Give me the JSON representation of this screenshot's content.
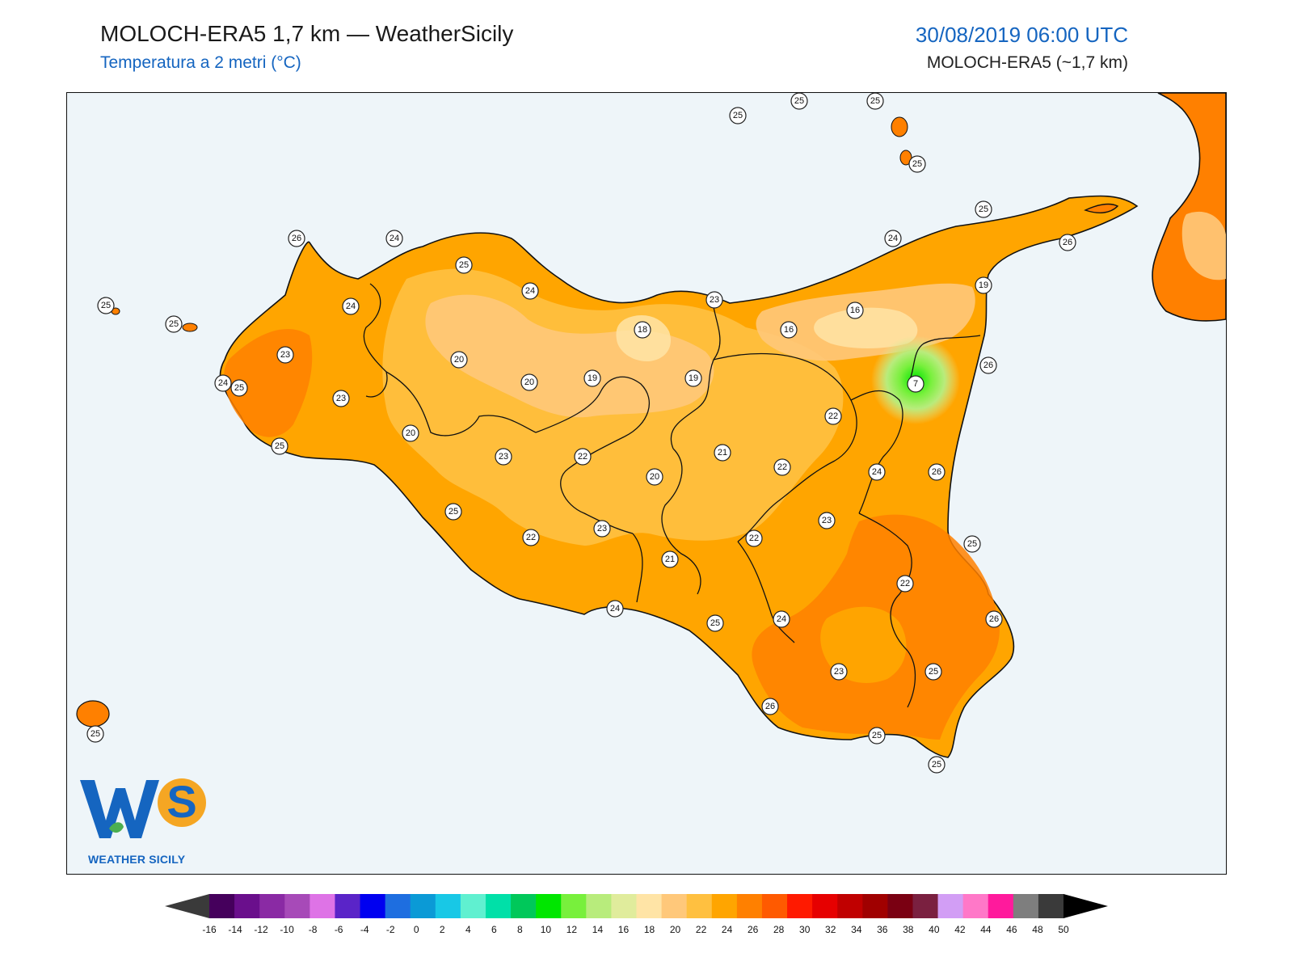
{
  "header": {
    "title": "MOLOCH-ERA5 1,7 km — WeatherSicily",
    "subtitle": "Temperatura a 2 metri (°C)",
    "datetime": "30/08/2019 06:00 UTC",
    "model": "MOLOCH-ERA5 (~1,7 km)"
  },
  "logo": {
    "monogram": "WS",
    "caption": "WEATHER SICILY",
    "brand_color": "#1565c0",
    "accent_color": "#f5a623"
  },
  "map": {
    "variable": "2 m temperature",
    "unit": "°C",
    "stations": [
      {
        "label": "25"
      },
      {
        "label": "25"
      },
      {
        "label": "25"
      },
      {
        "label": "25"
      },
      {
        "label": "25"
      },
      {
        "label": "24"
      },
      {
        "label": "26"
      },
      {
        "label": "19"
      },
      {
        "label": "16"
      },
      {
        "label": "16"
      },
      {
        "label": "7"
      },
      {
        "label": "26"
      },
      {
        "label": "22"
      },
      {
        "label": "24"
      },
      {
        "label": "26"
      },
      {
        "label": "25"
      },
      {
        "label": "22"
      },
      {
        "label": "26"
      },
      {
        "label": "25"
      },
      {
        "label": "23"
      },
      {
        "label": "25"
      },
      {
        "label": "25"
      },
      {
        "label": "26"
      },
      {
        "label": "24"
      },
      {
        "label": "23"
      },
      {
        "label": "22"
      },
      {
        "label": "22"
      },
      {
        "label": "21"
      },
      {
        "label": "25"
      },
      {
        "label": "24"
      },
      {
        "label": "21"
      },
      {
        "label": "20"
      },
      {
        "label": "22"
      },
      {
        "label": "23"
      },
      {
        "label": "22"
      },
      {
        "label": "25"
      },
      {
        "label": "23"
      },
      {
        "label": "20"
      },
      {
        "label": "23"
      },
      {
        "label": "25"
      },
      {
        "label": "24"
      },
      {
        "label": "23"
      },
      {
        "label": "24"
      },
      {
        "label": "25"
      },
      {
        "label": "26"
      },
      {
        "label": "25"
      },
      {
        "label": "25"
      },
      {
        "label": "24"
      },
      {
        "label": "25"
      },
      {
        "label": "24"
      },
      {
        "label": "20"
      },
      {
        "label": "20"
      },
      {
        "label": "19"
      },
      {
        "label": "18"
      },
      {
        "label": "19"
      },
      {
        "label": "23"
      },
      {
        "label": "25"
      }
    ]
  },
  "colorbar": {
    "unit": "°C",
    "ticks": [
      "-16",
      "-14",
      "-12",
      "-10",
      "-8",
      "-6",
      "-4",
      "-2",
      "0",
      "2",
      "4",
      "6",
      "8",
      "10",
      "12",
      "14",
      "16",
      "18",
      "20",
      "22",
      "24",
      "26",
      "28",
      "30",
      "32",
      "34",
      "36",
      "38",
      "40",
      "42",
      "44",
      "46",
      "48",
      "50"
    ],
    "colors": [
      "#45005c",
      "#6a0f8c",
      "#8a2aa4",
      "#a74ab8",
      "#de73e6",
      "#5a24c8",
      "#0000f0",
      "#1e6ee0",
      "#0b9ad6",
      "#18c8e6",
      "#60f0d0",
      "#00e0a8",
      "#00c85a",
      "#00e600",
      "#78f03c",
      "#b8ec7c",
      "#e0ec9c",
      "#ffe4a6",
      "#ffc87a",
      "#ffc040",
      "#ffa500",
      "#ff8000",
      "#ff5a00",
      "#ff1a00",
      "#e60000",
      "#c00000",
      "#a00000",
      "#7a0012",
      "#7a2040",
      "#d29ef5",
      "#ff78c8",
      "#ff1a9c",
      "#7e7e7e",
      "#3a3a3a"
    ],
    "under_color": "#3a3a3a",
    "over_color": "#000000"
  }
}
